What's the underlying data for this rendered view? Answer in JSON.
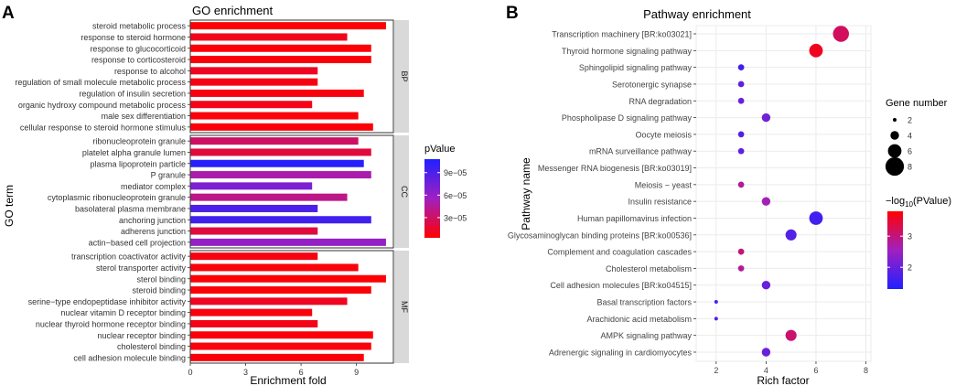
{
  "figure": {
    "panel_a_letter": "A",
    "panel_b_letter": "B"
  },
  "colors": {
    "low": "#ff0000",
    "mid": "#a020c0",
    "high": "#2020ff",
    "grid": "#ebebeb",
    "strip": "#d9d9d9"
  },
  "chart_data": [
    {
      "type": "bar",
      "orientation": "horizontal",
      "title": "GO enrichment",
      "xlabel": "Enrichment fold",
      "ylabel": "GO term",
      "xlim": [
        0,
        11
      ],
      "xticks": [
        "0",
        "3",
        "6",
        "9"
      ],
      "xtick_values": [
        0,
        3,
        6,
        9
      ],
      "legend": {
        "title": "pValue",
        "min": 3e-06,
        "max": 0.000108,
        "ticks": [
          {
            "label": "9e−05",
            "value": 9e-05
          },
          {
            "label": "6e−05",
            "value": 6e-05
          },
          {
            "label": "3e−05",
            "value": 3e-05
          }
        ]
      },
      "facets": [
        {
          "name": "BP",
          "categories": [
            "steroid metabolic process",
            "response to steroid hormone",
            "response to glucocorticoid",
            "response to corticosteroid",
            "response to alcohol",
            "regulation of small molecule metabolic process",
            "regulation of insulin secretion",
            "organic hydroxy compound metabolic process",
            "male sex differentiation",
            "cellular response to steroid hormone stimulus"
          ],
          "values": [
            10.6,
            8.5,
            9.8,
            9.8,
            6.9,
            6.9,
            9.4,
            6.6,
            9.1,
            9.9
          ],
          "pvalues": [
            4e-06,
            1e-05,
            5e-06,
            5e-06,
            1.2e-05,
            8e-06,
            7e-06,
            9e-06,
            6e-06,
            5e-06
          ]
        },
        {
          "name": "CC",
          "categories": [
            "ribonucleoprotein granule",
            "platelet alpha granule lumen",
            "plasma lipoprotein particle",
            "P granule",
            "mediator complex",
            "cytoplasmic ribonucleoprotein granule",
            "basolateral plasma membrane",
            "anchoring junction",
            "adherens junction",
            "actin−based cell projection"
          ],
          "values": [
            9.1,
            9.8,
            9.4,
            9.8,
            6.6,
            8.5,
            6.9,
            9.8,
            6.9,
            10.6
          ],
          "pvalues": [
            3e-05,
            2e-05,
            0.000105,
            5e-05,
            7e-05,
            4e-05,
            9e-05,
            9.5e-05,
            2e-05,
            6e-05
          ]
        },
        {
          "name": "MF",
          "categories": [
            "transcription coactivator activity",
            "sterol transporter activity",
            "sterol binding",
            "steroid binding",
            "serine−type endopeptidase inhibitor activity",
            "nuclear vitamin D receptor binding",
            "nuclear thyroid hormone receptor binding",
            "nuclear receptor binding",
            "cholesterol binding",
            "cell adhesion molecule binding"
          ],
          "values": [
            6.9,
            9.1,
            10.6,
            9.8,
            8.5,
            6.6,
            6.9,
            9.9,
            9.8,
            9.4
          ],
          "pvalues": [
            8e-06,
            6e-06,
            4e-06,
            5e-06,
            1.2e-05,
            7e-06,
            9e-06,
            5e-06,
            6e-06,
            5e-06
          ]
        }
      ]
    },
    {
      "type": "scatter",
      "title": "Pathway enrichment",
      "xlabel": "Rich factor",
      "ylabel": "Pathway name",
      "xlim": [
        1.2,
        8.2
      ],
      "xticks": [
        2,
        4,
        6,
        8
      ],
      "categories": [
        "Transcription machinery [BR:ko03021]",
        "Thyroid hormone signaling pathway",
        "Sphingolipid signaling pathway",
        "Serotonergic synapse",
        "RNA degradation",
        "Phospholipase D signaling pathway",
        "Oocyte meiosis",
        "mRNA surveillance pathway",
        "Messenger RNA biogenesis [BR:ko03019]",
        "Meiosis − yeast",
        "Insulin resistance",
        "Human papillomavirus infection",
        "Glycosaminoglycan binding proteins [BR:ko00536]",
        "Complement and coagulation cascades",
        "Cholesterol metabolism",
        "Cell adhesion molecules [BR:ko04515]",
        "Basal transcription factors",
        "Arachidonic acid metabolism",
        "AMPK signaling pathway",
        "Adrenergic signaling in cardiomyocytes"
      ],
      "x": [
        7,
        6,
        3,
        3,
        3,
        4,
        3,
        3,
        null,
        3,
        4,
        6,
        5,
        3,
        3,
        4,
        2,
        2,
        5,
        4
      ],
      "gene_number": [
        7,
        6,
        3,
        3,
        3,
        4,
        3,
        3,
        null,
        3,
        4,
        6,
        5,
        3,
        3,
        4,
        2,
        2,
        5,
        4
      ],
      "neg_log10_p": [
        3.2,
        3.6,
        1.6,
        1.9,
        2.0,
        2.1,
        1.8,
        1.9,
        null,
        2.8,
        2.6,
        1.6,
        1.8,
        3.0,
        2.8,
        2.0,
        1.7,
        1.8,
        3.1,
        2.0
      ],
      "legend_size": {
        "title": "Gene number",
        "labels": [
          "2",
          "4",
          "6",
          "8"
        ],
        "values": [
          2,
          4,
          6,
          8
        ]
      },
      "legend_color": {
        "title_prefix": "−log",
        "title_sub": "10",
        "title_suffix": "(PValue)",
        "min": 1.3,
        "max": 3.8,
        "ticks": [
          {
            "label": "3",
            "value": 3
          },
          {
            "label": "2",
            "value": 2
          }
        ]
      }
    }
  ]
}
